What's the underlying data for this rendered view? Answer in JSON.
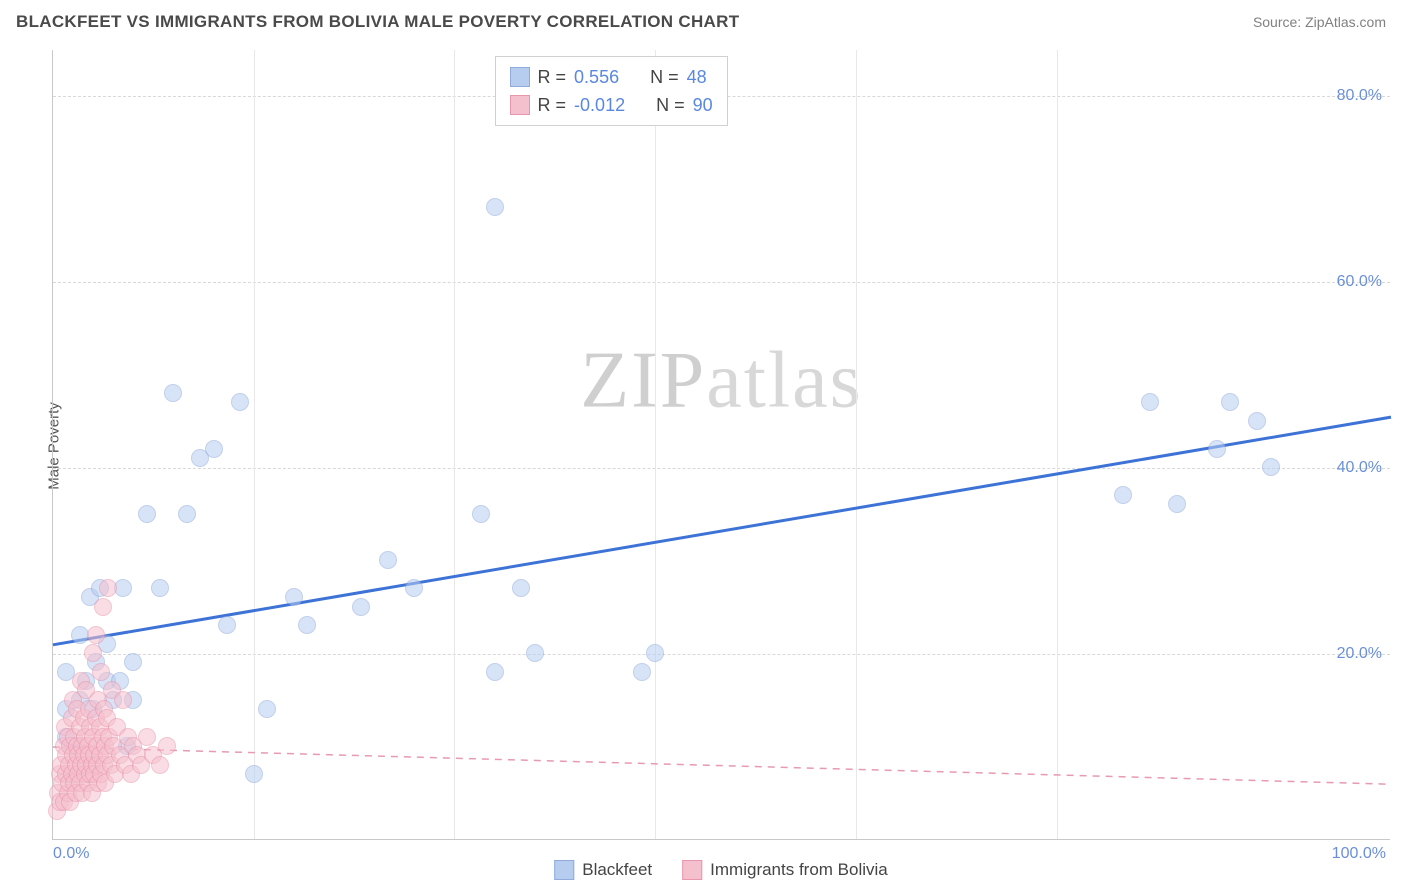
{
  "title": "BLACKFEET VS IMMIGRANTS FROM BOLIVIA MALE POVERTY CORRELATION CHART",
  "source": "Source: ZipAtlas.com",
  "ylabel": "Male Poverty",
  "watermark_a": "ZIP",
  "watermark_b": "atlas",
  "chart": {
    "type": "scatter",
    "xlim": [
      0,
      100
    ],
    "ylim": [
      0,
      85
    ],
    "background_color": "#ffffff",
    "grid_color": "#d8d8d8",
    "yticks": [
      20,
      40,
      60,
      80
    ],
    "ytick_labels": [
      "20.0%",
      "40.0%",
      "60.0%",
      "80.0%"
    ],
    "xtick_positions": [
      15,
      30,
      45,
      60,
      75,
      100
    ],
    "xlim_labels": {
      "min": "0.0%",
      "max": "100.0%"
    },
    "marker_radius": 9,
    "series": [
      {
        "name": "Blackfeet",
        "fill": "#b7cdf0",
        "stroke": "#8faadb",
        "fill_opacity": 0.55,
        "r_label": "R =",
        "r_value": "0.556",
        "n_label": "N =",
        "n_value": "48",
        "trend": {
          "x1": 0,
          "y1": 21,
          "x2": 100,
          "y2": 45.5,
          "stroke": "#3d72d6",
          "width": 3,
          "dash": "none"
        },
        "points": [
          [
            1,
            11
          ],
          [
            1,
            14
          ],
          [
            1,
            18
          ],
          [
            1.5,
            10
          ],
          [
            2,
            15
          ],
          [
            2,
            22
          ],
          [
            2.5,
            17
          ],
          [
            2.8,
            26
          ],
          [
            3,
            14
          ],
          [
            3.2,
            19
          ],
          [
            3.5,
            27
          ],
          [
            4,
            17
          ],
          [
            4,
            21
          ],
          [
            4.5,
            15
          ],
          [
            5,
            17
          ],
          [
            5.2,
            27
          ],
          [
            5.5,
            10
          ],
          [
            6,
            19
          ],
          [
            6,
            15
          ],
          [
            7,
            35
          ],
          [
            8,
            27
          ],
          [
            9,
            48
          ],
          [
            10,
            35
          ],
          [
            11,
            41
          ],
          [
            12,
            42
          ],
          [
            13,
            23
          ],
          [
            14,
            47
          ],
          [
            15,
            7
          ],
          [
            16,
            14
          ],
          [
            18,
            26
          ],
          [
            19,
            23
          ],
          [
            23,
            25
          ],
          [
            25,
            30
          ],
          [
            27,
            27
          ],
          [
            32,
            35
          ],
          [
            33,
            68
          ],
          [
            33,
            18
          ],
          [
            35,
            27
          ],
          [
            36,
            20
          ],
          [
            44,
            18
          ],
          [
            45,
            20
          ],
          [
            80,
            37
          ],
          [
            82,
            47
          ],
          [
            84,
            36
          ],
          [
            87,
            42
          ],
          [
            88,
            47
          ],
          [
            90,
            45
          ],
          [
            91,
            40
          ]
        ]
      },
      {
        "name": "Immigrants from Bolivia",
        "fill": "#f5c0ce",
        "stroke": "#e995ab",
        "fill_opacity": 0.55,
        "r_label": "R =",
        "r_value": "-0.012",
        "n_label": "N =",
        "n_value": "90",
        "trend": {
          "x1": 0,
          "y1": 10,
          "x2": 100,
          "y2": 6,
          "stroke": "#e79ab0",
          "width": 1.5,
          "dash": "7,6"
        },
        "points": [
          [
            0.3,
            3
          ],
          [
            0.4,
            5
          ],
          [
            0.5,
            7
          ],
          [
            0.5,
            4
          ],
          [
            0.6,
            8
          ],
          [
            0.7,
            6
          ],
          [
            0.8,
            10
          ],
          [
            0.8,
            4
          ],
          [
            0.9,
            12
          ],
          [
            1.0,
            7
          ],
          [
            1.0,
            9
          ],
          [
            1.1,
            5
          ],
          [
            1.1,
            11
          ],
          [
            1.2,
            8
          ],
          [
            1.2,
            6
          ],
          [
            1.3,
            10
          ],
          [
            1.3,
            4
          ],
          [
            1.4,
            13
          ],
          [
            1.4,
            7
          ],
          [
            1.5,
            9
          ],
          [
            1.5,
            15
          ],
          [
            1.6,
            6
          ],
          [
            1.6,
            11
          ],
          [
            1.7,
            8
          ],
          [
            1.7,
            5
          ],
          [
            1.8,
            10
          ],
          [
            1.8,
            14
          ],
          [
            1.9,
            7
          ],
          [
            1.9,
            9
          ],
          [
            2.0,
            12
          ],
          [
            2.0,
            6
          ],
          [
            2.1,
            8
          ],
          [
            2.1,
            17
          ],
          [
            2.2,
            10
          ],
          [
            2.2,
            5
          ],
          [
            2.3,
            9
          ],
          [
            2.3,
            13
          ],
          [
            2.4,
            7
          ],
          [
            2.4,
            11
          ],
          [
            2.5,
            8
          ],
          [
            2.5,
            16
          ],
          [
            2.6,
            6
          ],
          [
            2.6,
            10
          ],
          [
            2.7,
            9
          ],
          [
            2.7,
            14
          ],
          [
            2.8,
            7
          ],
          [
            2.8,
            12
          ],
          [
            2.9,
            8
          ],
          [
            2.9,
            5
          ],
          [
            3.0,
            11
          ],
          [
            3.0,
            20
          ],
          [
            3.1,
            9
          ],
          [
            3.1,
            7
          ],
          [
            3.2,
            13
          ],
          [
            3.2,
            22
          ],
          [
            3.3,
            8
          ],
          [
            3.3,
            10
          ],
          [
            3.4,
            15
          ],
          [
            3.4,
            6
          ],
          [
            3.5,
            12
          ],
          [
            3.5,
            9
          ],
          [
            3.6,
            18
          ],
          [
            3.6,
            7
          ],
          [
            3.7,
            11
          ],
          [
            3.7,
            25
          ],
          [
            3.8,
            8
          ],
          [
            3.8,
            14
          ],
          [
            3.9,
            10
          ],
          [
            3.9,
            6
          ],
          [
            4.0,
            13
          ],
          [
            4.0,
            9
          ],
          [
            4.1,
            27
          ],
          [
            4.2,
            11
          ],
          [
            4.3,
            8
          ],
          [
            4.4,
            16
          ],
          [
            4.5,
            10
          ],
          [
            4.6,
            7
          ],
          [
            4.8,
            12
          ],
          [
            5.0,
            9
          ],
          [
            5.2,
            15
          ],
          [
            5.4,
            8
          ],
          [
            5.6,
            11
          ],
          [
            5.8,
            7
          ],
          [
            6.0,
            10
          ],
          [
            6.3,
            9
          ],
          [
            6.6,
            8
          ],
          [
            7.0,
            11
          ],
          [
            7.5,
            9
          ],
          [
            8.0,
            8
          ],
          [
            8.5,
            10
          ]
        ]
      }
    ]
  },
  "legend_bottom": [
    {
      "label": "Blackfeet",
      "fill": "#b7cdf0",
      "stroke": "#8faadb"
    },
    {
      "label": "Immigrants from Bolivia",
      "fill": "#f5c0ce",
      "stroke": "#e995ab"
    }
  ]
}
